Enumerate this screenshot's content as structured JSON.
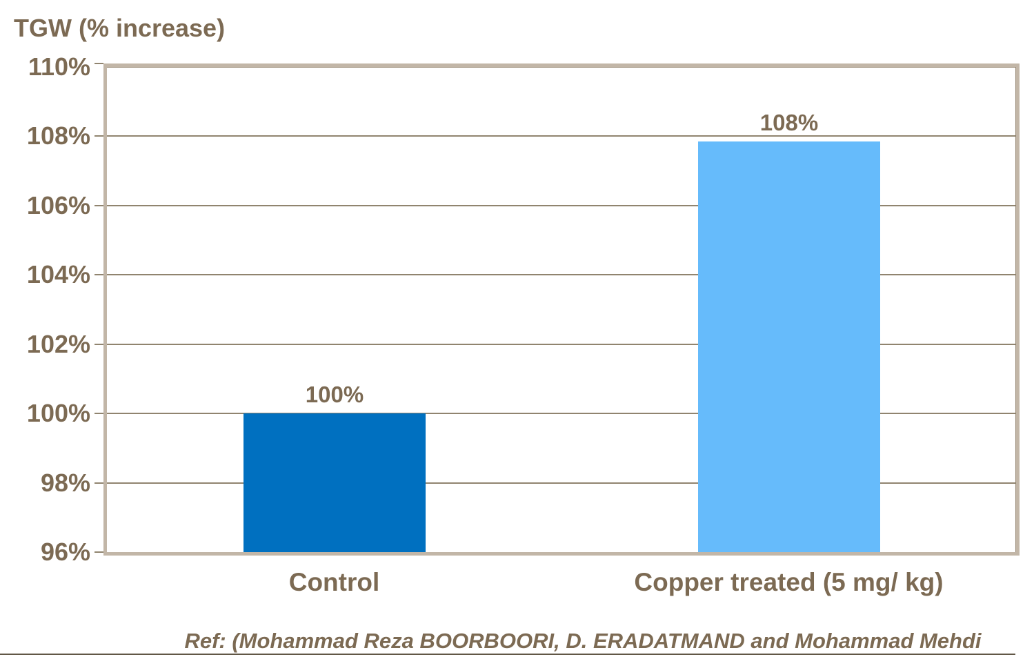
{
  "chart_data": {
    "type": "bar",
    "title": "TGW (% increase)",
    "categories": [
      "Control",
      "Copper treated (5 mg/ kg)"
    ],
    "values": [
      100,
      107.85
    ],
    "value_labels": [
      "100%",
      "108%"
    ],
    "ylabel": "",
    "xlabel": "",
    "ylim": [
      96,
      110
    ],
    "ytick_step": 2,
    "ytick_labels": [
      "110%",
      "108%",
      "106%",
      "104%",
      "102%",
      "100%",
      "98%",
      "96%"
    ],
    "grid": true,
    "legend": false,
    "footnote": "Ref: (Mohammad Reza BOORBOORI, D. ERADATMAND and Mohammad Mehdi"
  },
  "colors": {
    "background": "#ffffff",
    "text": "#7c6a53",
    "gridline": "#90846f",
    "tick": "#90846f",
    "plot_border": "#c2b6a7",
    "plot_border_accent": "#9d8e7a",
    "bar_control": "#0070c0",
    "bar_copper_treated": "#66bbfb",
    "bottom_rule": "#615746"
  }
}
